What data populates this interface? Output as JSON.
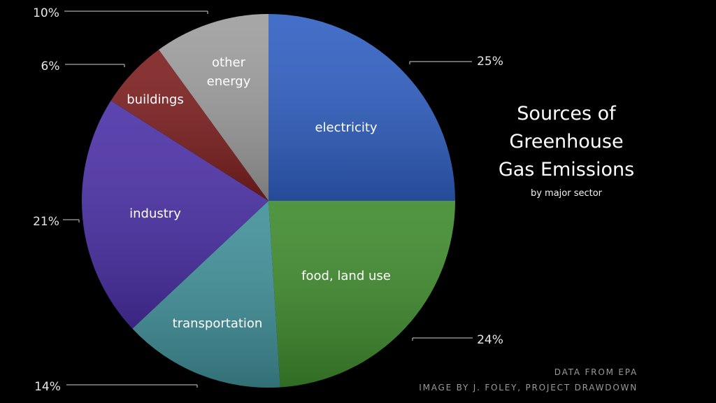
{
  "chart_data": {
    "type": "pie",
    "title": "Sources of Greenhouse Gas Emissions",
    "subtitle": "by major sector",
    "slices": [
      {
        "label": "electricity",
        "value": 25,
        "percent_label": "25%",
        "color": "#2f5fc2"
      },
      {
        "label": "food, land use",
        "value": 24,
        "percent_label": "24%",
        "color": "#3e8a2c"
      },
      {
        "label": "transportation",
        "value": 14,
        "percent_label": "14%",
        "color": "#3f8f98"
      },
      {
        "label": "industry",
        "value": 21,
        "percent_label": "21%",
        "color": "#4a2fa6"
      },
      {
        "label": "buildings",
        "value": 6,
        "percent_label": "6%",
        "color": "#7c1e1e"
      },
      {
        "label": "other energy",
        "value": 10,
        "percent_label": "10%",
        "color": "#9d9d9d"
      }
    ],
    "legend": "none"
  },
  "header": {
    "title_line1": "Sources of Greenhouse",
    "title_line2": "Gas Emissions",
    "subtitle": "by major sector"
  },
  "credits": {
    "line1": "DATA FROM EPA",
    "line2": "IMAGE BY J. FOLEY, PROJECT DRAWDOWN"
  }
}
